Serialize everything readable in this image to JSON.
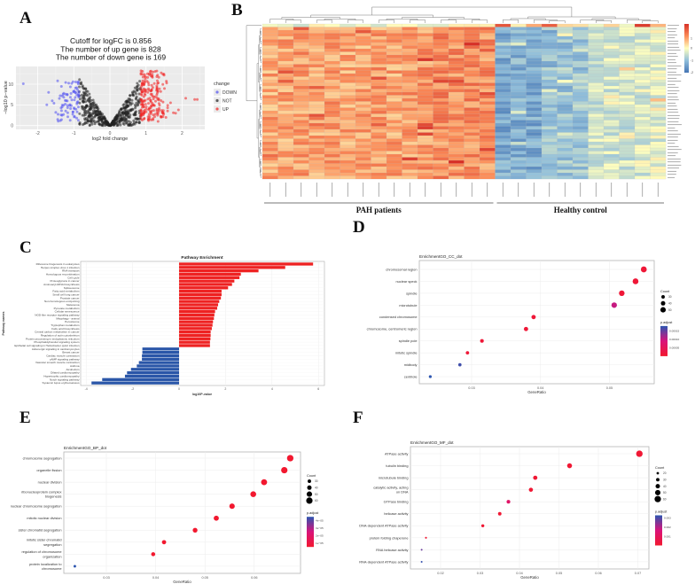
{
  "panels": {
    "a": "A",
    "b": "B",
    "c": "C",
    "d": "D",
    "e": "E",
    "f": "F"
  },
  "chart_data": [
    {
      "type": "scatter",
      "title_lines": [
        "Cutoff for logFC is 0.856",
        "The number of up gene is 828",
        "The number of down gene is 169"
      ],
      "xlabel": "log2 fold change",
      "ylabel": "−log10 p−value",
      "xticks": [
        -2,
        -1,
        0,
        1,
        2
      ],
      "yticks": [
        0,
        5,
        10
      ],
      "xlim": [
        -2.65,
        2.6
      ],
      "ylim": [
        -0.8,
        14
      ],
      "cutoff_logfc": 0.856,
      "up_count": 828,
      "down_count": 169,
      "legend_title": "change",
      "legend": [
        {
          "label": "DOWN",
          "color": "#5050f0"
        },
        {
          "label": "NOT",
          "color": "#222222"
        },
        {
          "label": "UP",
          "color": "#f02020"
        }
      ],
      "background": "#ebebeb"
    },
    {
      "type": "heatmap",
      "groups": [
        {
          "label": "PAH patients",
          "n": 15
        },
        {
          "label": "Healthy control",
          "n": 11
        }
      ],
      "column_mean_z": [
        0.75,
        0.8,
        0.85,
        0.8,
        0.85,
        0.8,
        0.8,
        0.85,
        0.8,
        0.85,
        0.9,
        1.0,
        1.0,
        1.0,
        0.95,
        -1.3,
        -1.2,
        -1.3,
        -1.0,
        -0.9,
        -0.9,
        -0.45,
        -0.4,
        -0.45,
        -0.35,
        -0.25
      ],
      "rows": 50,
      "colorbar_ticks": [
        1,
        0,
        -1,
        -2
      ],
      "colors": {
        "high": "#d73027",
        "mid": "#ffffbf",
        "low": "#4575b4"
      }
    },
    {
      "type": "bar",
      "title": "Pathway Enrichment",
      "xlabel": "log10P-value",
      "ylabel": "Pathway names",
      "xticks": [
        -4,
        -2,
        0,
        2,
        4,
        6
      ],
      "xlim": [
        -4.1,
        6.2
      ],
      "up_color": "#ee2222",
      "down_color": "#2a56a8",
      "categories": [
        "Ribosome biogenesis in eukaryotes",
        "Herpes simplex virus 1 infection",
        "RNA transport",
        "Homologous recombination",
        "Cell cycle",
        "Proteoglycans in cancer",
        "Aminoacyl-tRNA biosynthesis",
        "Spliceosome",
        "Fatty acid metabolism",
        "Small cell lung cancer",
        "Prostate cancer",
        "Non-homologous end-joining",
        "Melanoma",
        "Pyruvate metabolism",
        "Cellular senescence",
        "NOD-like receptor signaling pathway",
        "Mitophagy - animal",
        "Peroxisome",
        "Tryptophan metabolism",
        "Fatty acid biosynthesis",
        "Central carbon metabolism in cancer",
        "Regulation of actin cytoskeleton",
        "Protein processing in endoplasmic reticulum",
        "Phosphatidylinositol signaling system",
        "Epithelial cell signaling in Helicobacter pylori infection",
        "Adrenergic signaling in cardiomyocytes",
        "Breast cancer",
        "Cardiac muscle contraction",
        "cAMP signaling pathway",
        "Vascular smooth muscle contraction",
        "Asthma",
        "Alcoholism",
        "Dilated cardiomyopathy",
        "Hypertrophic cardiomyopathy",
        "Notch signaling pathway",
        "Systemic lupus erythematosus"
      ],
      "values": [
        5.77,
        4.57,
        3.42,
        2.66,
        2.6,
        2.38,
        2.28,
        2.11,
        1.83,
        1.83,
        1.8,
        1.73,
        1.68,
        1.64,
        1.55,
        1.52,
        1.5,
        1.46,
        1.44,
        1.41,
        1.36,
        1.36,
        1.35,
        1.33,
        1.33,
        -1.58,
        -1.58,
        -1.6,
        -1.6,
        -1.73,
        -1.82,
        -2.07,
        -2.24,
        -2.33,
        -3.31,
        -3.77
      ]
    },
    {
      "type": "scatter",
      "title": "EnrichmentGO_CC_dot",
      "xlabel": "GeneRatio",
      "xticks": [
        0.03,
        0.04,
        0.05
      ],
      "labels": [
        [
          "chromosomal region"
        ],
        [
          "nuclear speck"
        ],
        [
          "spindle"
        ],
        [
          "microtubule"
        ],
        [
          "condensed chromosome"
        ],
        [
          "chromosome, centromeric region"
        ],
        [
          "spindle pole"
        ],
        [
          "mitotic spindle"
        ],
        [
          "midbody"
        ],
        [
          "centriole"
        ]
      ],
      "gene_ratio": [
        0.055,
        0.0538,
        0.0518,
        0.0507,
        0.039,
        0.0379,
        0.0315,
        0.0294,
        0.0283,
        0.024
      ],
      "count": [
        55,
        54,
        52,
        51,
        39,
        38,
        32,
        29,
        28,
        24
      ],
      "p_adjust": [
        1e-05,
        1e-05,
        1e-05,
        0.0001,
        1e-05,
        1e-05,
        1e-05,
        1e-05,
        0.00017,
        0.00018
      ],
      "p_range": [
        0,
        0.00018
      ],
      "size_legend_title": "Count",
      "size_legend": [
        30,
        40,
        50
      ],
      "color_legend_title": "p.adjust",
      "color_legend": [
        "0.00015",
        "0.00010",
        "0.00005"
      ],
      "color_legend_values": [
        0.00015,
        0.0001,
        5e-05
      ]
    },
    {
      "type": "scatter",
      "title": "EnrichmentGO_BP_dot",
      "xlabel": "GeneRatio",
      "xticks": [
        0.03,
        0.04,
        0.05,
        0.06
      ],
      "labels": [
        [
          "chromosome segregation"
        ],
        [
          "organelle fission"
        ],
        [
          "nuclear division"
        ],
        [
          "ribonucleoprotein complex",
          "biogenesis"
        ],
        [
          "nuclear chromosome segregation"
        ],
        [
          "mitotic nuclear division"
        ],
        [
          "sister chromatid segregation"
        ],
        [
          "mitotic sister chromatid",
          "segregation"
        ],
        [
          "regulation of chromosome",
          "organization"
        ],
        [
          "protein localization to",
          "chromosome"
        ]
      ],
      "gene_ratio": [
        0.0673,
        0.0661,
        0.062,
        0.0598,
        0.0555,
        0.0523,
        0.048,
        0.0417,
        0.0395,
        0.0236
      ],
      "count": [
        61,
        60,
        56,
        54,
        50,
        47,
        43,
        38,
        36,
        21
      ],
      "p_adjust": [
        1e-06,
        1e-06,
        1e-06,
        1e-06,
        1e-06,
        1e-06,
        1e-06,
        1e-06,
        1e-06,
        4.5e-05
      ],
      "p_range": [
        5e-06,
        4.5e-05
      ],
      "size_legend_title": "Count",
      "size_legend": [
        30,
        40,
        50,
        60
      ],
      "color_legend_title": "p.adjust",
      "color_legend": [
        "4e−05",
        "3e−05",
        "2e−05",
        "1e−05"
      ],
      "color_legend_values": [
        4e-05,
        3e-05,
        2e-05,
        1e-05
      ]
    },
    {
      "type": "scatter",
      "title": "EnrichmentGO_MF_dot",
      "xlabel": "GeneRatio",
      "xticks": [
        0.02,
        0.03,
        0.04,
        0.05,
        0.06,
        0.07
      ],
      "labels": [
        [
          "ATPase activity"
        ],
        [
          "tubulin binding"
        ],
        [
          "microtubule binding"
        ],
        [
          "catalytic activity, acting",
          "on DNA"
        ],
        [
          "GTPase binding"
        ],
        [
          "helicase activity"
        ],
        [
          "DNA-dependent ATPase activity"
        ],
        [
          "protein folding chaperone"
        ],
        [
          "RNA helicase activity"
        ],
        [
          "RNA-dependent ATPase activity"
        ]
      ],
      "gene_ratio": [
        0.0704,
        0.0527,
        0.044,
        0.0429,
        0.0372,
        0.035,
        0.0307,
        0.0163,
        0.0152,
        0.0152
      ],
      "count": [
        61,
        45,
        38,
        37,
        32,
        30,
        26,
        14,
        13,
        13
      ],
      "p_adjust": [
        0.0001,
        0.0001,
        0.0001,
        0.0001,
        0.0012,
        0.0001,
        0.0001,
        0.0001,
        0.0027,
        0.0032
      ],
      "p_range": [
        0,
        0.0033
      ],
      "size_legend_title": "Count",
      "size_legend": [
        20,
        30,
        40,
        50,
        60
      ],
      "color_legend_title": "p.adjust",
      "color_legend": [
        "0.003",
        "0.002",
        "0.001"
      ],
      "color_legend_values": [
        0.003,
        0.002,
        0.001
      ]
    }
  ]
}
